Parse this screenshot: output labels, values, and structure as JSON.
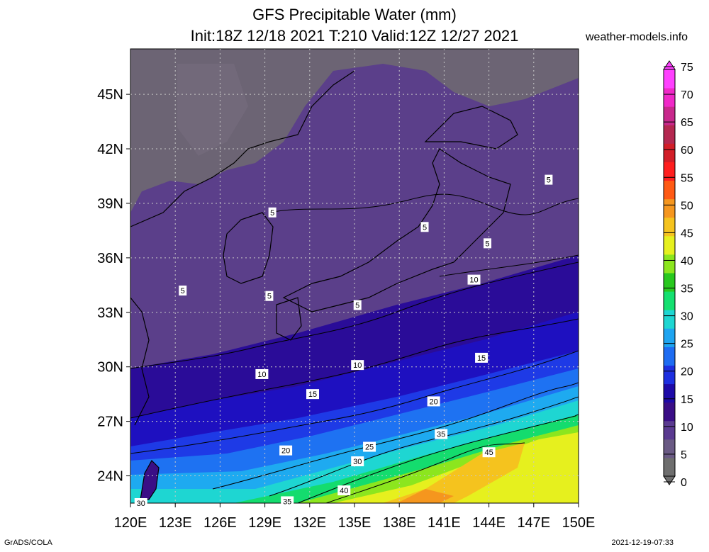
{
  "header": {
    "title": "GFS Precipitable Water (mm)",
    "subtitle": "Init:18Z 12/18 2021 T:210 Valid:12Z 12/27 2021",
    "site": "weather-models.info"
  },
  "footer": {
    "left": "GrADS/COLA",
    "right": "2021-12-19-07:33"
  },
  "map": {
    "lon_labels": [
      "120E",
      "123E",
      "126E",
      "129E",
      "132E",
      "135E",
      "138E",
      "141E",
      "144E",
      "147E",
      "150E"
    ],
    "lat_labels": [
      "24N",
      "27N",
      "30N",
      "33N",
      "36N",
      "39N",
      "42N",
      "45N"
    ],
    "lon_range": [
      120,
      150
    ],
    "lat_range": [
      22.5,
      47.5
    ],
    "gridlines": true
  },
  "colorbar": {
    "ticks": [
      "0",
      "5",
      "10",
      "15",
      "20",
      "25",
      "30",
      "35",
      "40",
      "45",
      "50",
      "55",
      "60",
      "65",
      "70",
      "75"
    ],
    "colors": [
      "#6e6e6e",
      "#6a5a84",
      "#5a3a90",
      "#3a0e86",
      "#1e0aa8",
      "#1d2fe0",
      "#1e6cf2",
      "#1ea4f0",
      "#1ed6d2",
      "#14e070",
      "#28c81e",
      "#8ce61e",
      "#e6f01e",
      "#f5c31e",
      "#f5961e",
      "#ff5a14",
      "#ff1e1e",
      "#d21e28",
      "#b42850",
      "#c8288c",
      "#f028c8",
      "#ff40ff"
    ]
  },
  "contour_labels": [
    {
      "text": "5"
    },
    {
      "text": "5"
    },
    {
      "text": "5"
    },
    {
      "text": "5"
    },
    {
      "text": "5"
    },
    {
      "text": "5"
    },
    {
      "text": "5"
    },
    {
      "text": "10"
    },
    {
      "text": "10"
    },
    {
      "text": "10"
    },
    {
      "text": "15"
    },
    {
      "text": "15"
    },
    {
      "text": "20"
    },
    {
      "text": "20"
    },
    {
      "text": "25"
    },
    {
      "text": "30"
    },
    {
      "text": "35"
    },
    {
      "text": "35"
    },
    {
      "text": "40"
    },
    {
      "text": "45"
    },
    {
      "text": "30"
    }
  ]
}
